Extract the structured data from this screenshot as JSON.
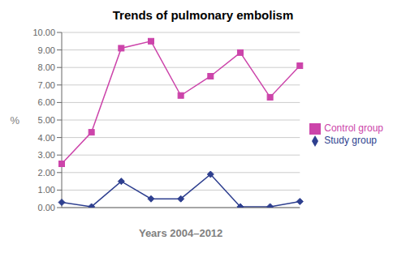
{
  "chart_data": {
    "type": "line",
    "title": "Trends of pulmonary embolism",
    "x_label": "Years 2004–2012",
    "y_label": "%",
    "categories": [
      null,
      null,
      null,
      null,
      null,
      null,
      null,
      null,
      null
    ],
    "series": [
      {
        "name": "Study group",
        "color": "#2e3f8f",
        "marker": "diamond",
        "values": [
          0.3,
          0.05,
          1.5,
          0.5,
          0.5,
          1.9,
          0.05,
          0.05,
          0.35
        ]
      },
      {
        "name": "Control group",
        "color": "#cc44aa",
        "marker": "square",
        "values": [
          2.5,
          4.3,
          9.1,
          9.5,
          6.4,
          7.5,
          8.85,
          6.3,
          8.1
        ]
      }
    ],
    "ylim": [
      0.0,
      10.0
    ],
    "yticks": [
      {
        "value": 0.0,
        "label": "0.00"
      },
      {
        "value": 1.0,
        "label": "1.00"
      },
      {
        "value": 2.0,
        "label": "2.00"
      },
      {
        "value": 3.0,
        "label": "3.00"
      },
      {
        "value": 4.0,
        "label": "4.00"
      },
      {
        "value": 5.0,
        "label": "5.00"
      },
      {
        "value": 6.0,
        "label": "6.00"
      },
      {
        "value": 7.0,
        "label": "7.00"
      },
      {
        "value": 8.0,
        "label": "8.00"
      },
      {
        "value": 9.0,
        "label": "9.00"
      },
      {
        "value": 10.0,
        "label": "10.00"
      }
    ],
    "grid": true,
    "legend": "right",
    "tick_labels": "y"
  }
}
